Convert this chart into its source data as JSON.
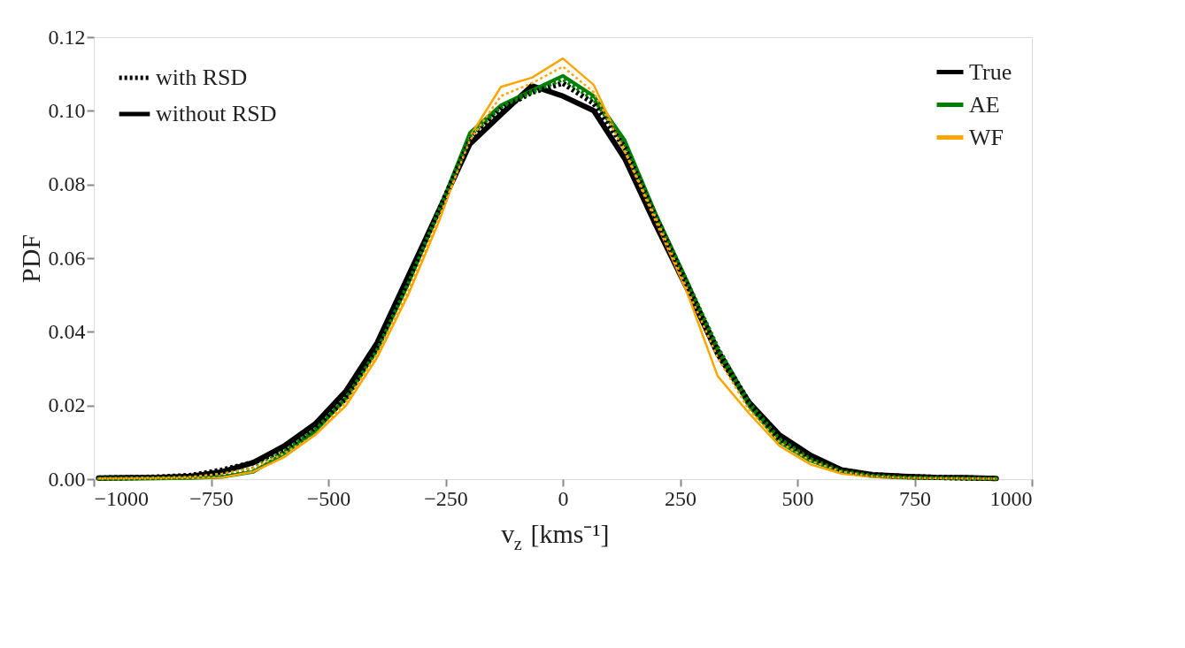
{
  "chart_data": {
    "type": "line",
    "xlabel": "v$_{z}$ [kms⁻¹]",
    "ylabel": "PDF",
    "x": [
      -990,
      -924,
      -858,
      -792,
      -726,
      -660,
      -594,
      -528,
      -462,
      -396,
      -330,
      -264,
      -198,
      -132,
      -66,
      0,
      66,
      132,
      198,
      264,
      330,
      396,
      462,
      528,
      594,
      660,
      726,
      792,
      858,
      924
    ],
    "series": [
      {
        "name": "True",
        "color": "#000000",
        "line_style": "solid",
        "values": [
          0.0003,
          0.0004,
          0.0005,
          0.0008,
          0.002,
          0.0045,
          0.009,
          0.015,
          0.024,
          0.037,
          0.055,
          0.073,
          0.091,
          0.099,
          0.1068,
          0.104,
          0.1,
          0.087,
          0.069,
          0.052,
          0.034,
          0.021,
          0.012,
          0.0065,
          0.0025,
          0.0012,
          0.0008,
          0.0005,
          0.0004,
          0.0002
        ]
      },
      {
        "name": "AE",
        "color": "#008000",
        "line_style": "solid",
        "values": [
          0.0001,
          0.0001,
          0.0002,
          0.0003,
          0.0006,
          0.002,
          0.007,
          0.013,
          0.022,
          0.035,
          0.053,
          0.073,
          0.094,
          0.1015,
          0.1055,
          0.1095,
          0.104,
          0.092,
          0.072,
          0.054,
          0.035,
          0.02,
          0.01,
          0.005,
          0.002,
          0.0008,
          0.0004,
          0.0003,
          0.0002,
          0.0001
        ]
      },
      {
        "name": "WF",
        "color": "#ffa500",
        "line_style": "solid",
        "values": [
          0.0001,
          0.0001,
          0.0002,
          0.0003,
          0.0005,
          0.002,
          0.006,
          0.012,
          0.02,
          0.033,
          0.05,
          0.07,
          0.093,
          0.1065,
          0.109,
          0.1142,
          0.107,
          0.089,
          0.07,
          0.051,
          0.028,
          0.018,
          0.009,
          0.004,
          0.0015,
          0.0006,
          0.0003,
          0.0002,
          0.0001,
          0.0001
        ]
      },
      {
        "color": "#000000",
        "line_style": "dotted",
        "values": [
          0.0003,
          0.0004,
          0.0006,
          0.001,
          0.0025,
          0.0045,
          0.008,
          0.014,
          0.022,
          0.036,
          0.054,
          0.073,
          0.092,
          0.1005,
          0.105,
          0.1075,
          0.102,
          0.09,
          0.071,
          0.053,
          0.035,
          0.021,
          0.011,
          0.006,
          0.0025,
          0.0012,
          0.0007,
          0.0005,
          0.0003,
          0.0002
        ]
      },
      {
        "color": "#008000",
        "line_style": "dotted",
        "values": [
          0.0002,
          0.0002,
          0.0003,
          0.0005,
          0.0012,
          0.003,
          0.0075,
          0.0135,
          0.022,
          0.035,
          0.053,
          0.073,
          0.093,
          0.101,
          0.105,
          0.1085,
          0.103,
          0.091,
          0.072,
          0.054,
          0.036,
          0.021,
          0.011,
          0.0055,
          0.0022,
          0.001,
          0.0005,
          0.0003,
          0.0002,
          0.0001
        ]
      },
      {
        "color": "#ffa500",
        "line_style": "dotted",
        "values": [
          0.0002,
          0.0003,
          0.0004,
          0.0006,
          0.0015,
          0.003,
          0.007,
          0.012,
          0.021,
          0.034,
          0.051,
          0.071,
          0.092,
          0.104,
          0.1075,
          0.112,
          0.105,
          0.089,
          0.071,
          0.052,
          0.033,
          0.019,
          0.01,
          0.005,
          0.002,
          0.0008,
          0.0004,
          0.0003,
          0.0002,
          0.0001
        ]
      }
    ],
    "xlim": [
      -1000,
      1000
    ],
    "xticks": [
      -1000,
      -750,
      -500,
      -250,
      0,
      250,
      500,
      750,
      1000
    ],
    "ylim": [
      0,
      0.12
    ],
    "yticks": [
      {
        "value": 0,
        "label": "0.00"
      },
      0.02,
      0.04,
      0.06,
      0.08,
      {
        "value": 0.1,
        "label": "0.10"
      },
      0.12
    ],
    "grid": false,
    "legend": "top right",
    "marker": "none",
    "annotations": [
      "with RSD",
      "without RSD"
    ]
  }
}
